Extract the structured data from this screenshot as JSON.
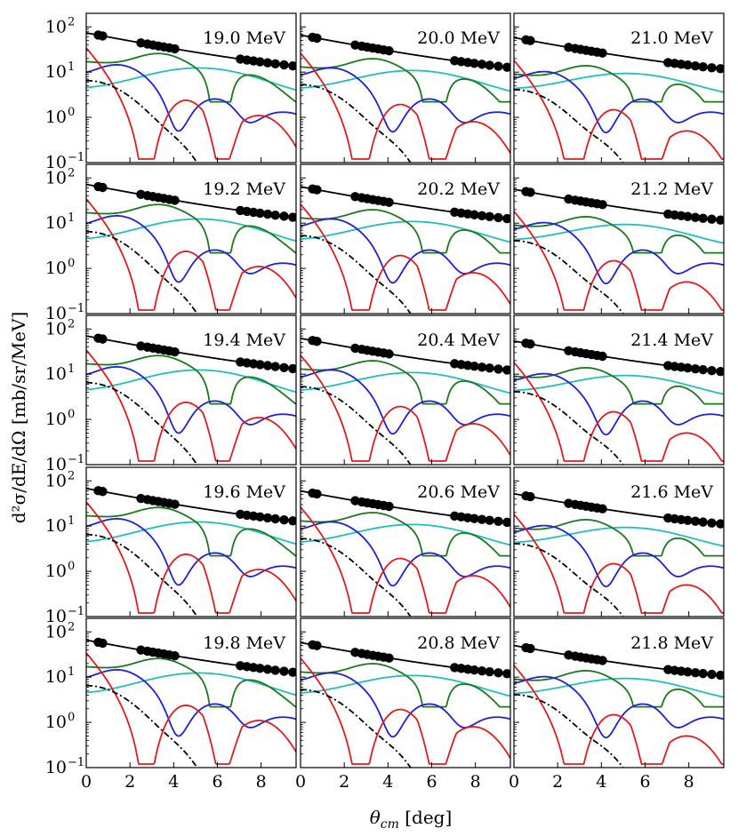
{
  "chart_data": {
    "type": "line",
    "figure_title": "",
    "layout_desc": "5 rows x 3 columns grid of log-scale panels sharing axes",
    "xlabel_main": "θ",
    "xlabel_sub": "cm",
    "xlabel_unit": " [deg]",
    "ylabel": "d²σ/dE/dΩ [mb/sr/MeV]",
    "xlim": [
      0,
      9.6
    ],
    "ylim_log10": [
      -1,
      2.3
    ],
    "x_ticks": [
      0,
      2,
      4,
      6,
      8
    ],
    "x_tick_labels": [
      "0",
      "2",
      "4",
      "6",
      "8"
    ],
    "y_ticks_log10": [
      -1,
      0,
      1,
      2
    ],
    "y_tick_base": "10",
    "y_tick_exps": [
      "−1",
      "0",
      "1",
      "2"
    ],
    "energies": [
      "19.0 MeV",
      "20.0 MeV",
      "21.0 MeV",
      "19.2 MeV",
      "20.2 MeV",
      "21.2 MeV",
      "19.4 MeV",
      "20.4 MeV",
      "21.4 MeV",
      "19.6 MeV",
      "20.6 MeV",
      "21.6 MeV",
      "19.8 MeV",
      "20.8 MeV",
      "21.8 MeV"
    ],
    "series_colors": {
      "total": "#000000",
      "L0": "#e31a1c",
      "L1": "#1f1fd6",
      "L2": "#1a7a1a",
      "L3": "#1fbfbf",
      "background": "#000000"
    },
    "data_points_x": [
      0.55,
      0.75,
      2.5,
      2.8,
      3.05,
      3.3,
      3.55,
      3.8,
      4.05,
      7.05,
      7.35,
      7.65,
      7.95,
      8.3,
      8.65,
      9.05,
      9.45
    ]
  }
}
